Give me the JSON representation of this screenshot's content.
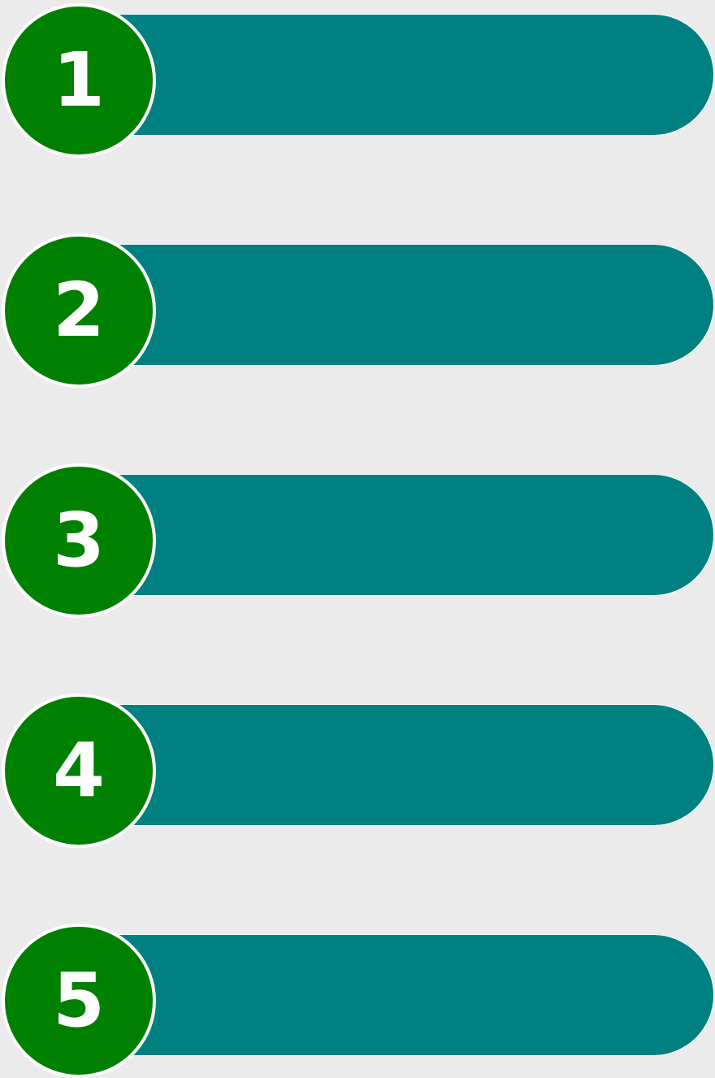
{
  "colors": {
    "background": "#ebebeb",
    "bar": "#008080",
    "circle": "#008000",
    "number": "#ffffff",
    "outline": "#ffffff"
  },
  "steps": [
    {
      "number": "1"
    },
    {
      "number": "2"
    },
    {
      "number": "3"
    },
    {
      "number": "4"
    },
    {
      "number": "5"
    }
  ]
}
